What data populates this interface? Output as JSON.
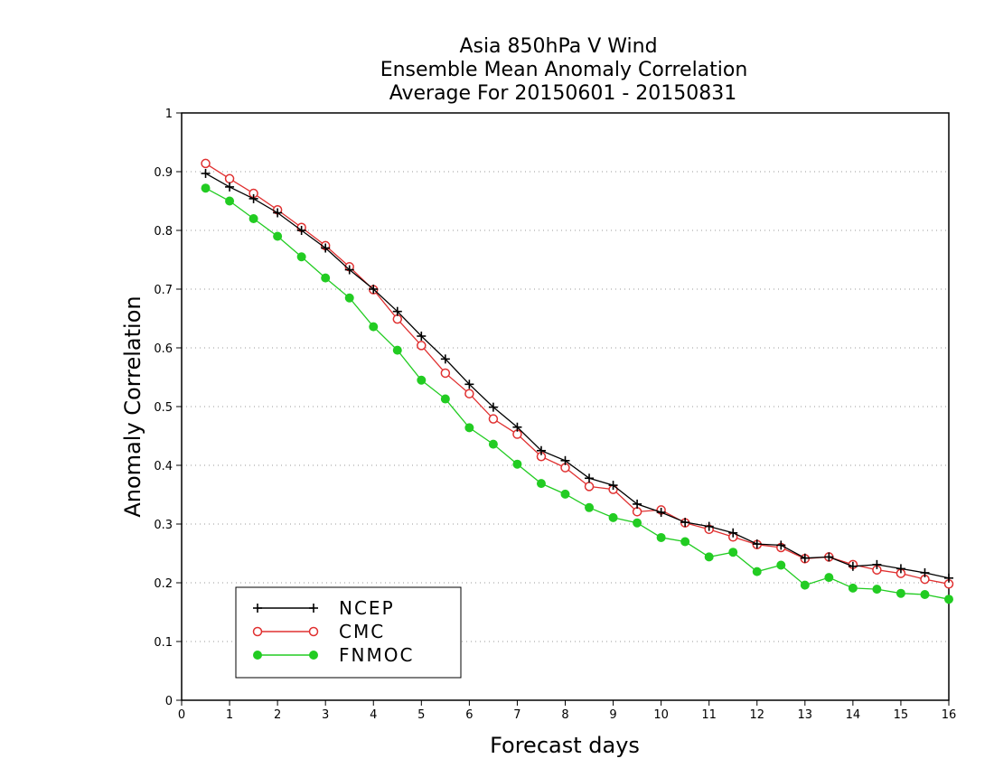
{
  "chart_data": {
    "type": "line",
    "title_lines": [
      "Asia 850hPa V Wind",
      "Ensemble Mean Anomaly Correlation",
      "Average For 20150601 - 20150831"
    ],
    "xlabel": "Forecast days",
    "ylabel": "Anomaly Correlation",
    "xlim": [
      0,
      16
    ],
    "ylim": [
      0,
      1
    ],
    "x_ticks": [
      0,
      1,
      2,
      3,
      4,
      5,
      6,
      7,
      8,
      9,
      10,
      11,
      12,
      13,
      14,
      15,
      16
    ],
    "y_ticks": [
      0,
      0.1,
      0.2,
      0.3,
      0.4,
      0.5,
      0.6,
      0.7,
      0.8,
      0.9,
      1
    ],
    "y_tick_labels": [
      "0",
      "0.1",
      "0.2",
      "0.3",
      "0.4",
      "0.5",
      "0.6",
      "0.7",
      "0.8",
      "0.9",
      "1"
    ],
    "grid": "horizontal-dotted",
    "legend_position": "bottom-left",
    "x": [
      0.5,
      1,
      1.5,
      2,
      2.5,
      3,
      3.5,
      4,
      4.5,
      5,
      5.5,
      6,
      6.5,
      7,
      7.5,
      8,
      8.5,
      9,
      9.5,
      10,
      10.5,
      11,
      11.5,
      12,
      12.5,
      13,
      13.5,
      14,
      14.5,
      15,
      15.5,
      16
    ],
    "series": [
      {
        "name": "NCEP",
        "color": "#000000",
        "marker": "plus",
        "values": [
          0.897,
          0.874,
          0.854,
          0.83,
          0.8,
          0.77,
          0.733,
          0.7,
          0.662,
          0.62,
          0.581,
          0.538,
          0.499,
          0.465,
          0.425,
          0.408,
          0.378,
          0.366,
          0.334,
          0.32,
          0.303,
          0.296,
          0.285,
          0.266,
          0.264,
          0.242,
          0.244,
          0.228,
          0.231,
          0.224,
          0.217,
          0.208
        ]
      },
      {
        "name": "CMC",
        "color": "#e03030",
        "marker": "open-circle",
        "values": [
          0.914,
          0.888,
          0.863,
          0.835,
          0.805,
          0.774,
          0.738,
          0.699,
          0.649,
          0.604,
          0.557,
          0.522,
          0.479,
          0.453,
          0.415,
          0.396,
          0.364,
          0.359,
          0.321,
          0.324,
          0.302,
          0.291,
          0.278,
          0.265,
          0.26,
          0.241,
          0.244,
          0.231,
          0.222,
          0.216,
          0.206,
          0.198
        ]
      },
      {
        "name": "FNMOC",
        "color": "#22cc22",
        "marker": "filled-circle",
        "values": [
          0.872,
          0.85,
          0.82,
          0.79,
          0.755,
          0.719,
          0.685,
          0.636,
          0.596,
          0.545,
          0.513,
          0.464,
          0.436,
          0.402,
          0.369,
          0.351,
          0.328,
          0.311,
          0.302,
          0.277,
          0.27,
          0.244,
          0.252,
          0.219,
          0.23,
          0.196,
          0.209,
          0.191,
          0.189,
          0.182,
          0.18,
          0.172
        ]
      }
    ]
  }
}
